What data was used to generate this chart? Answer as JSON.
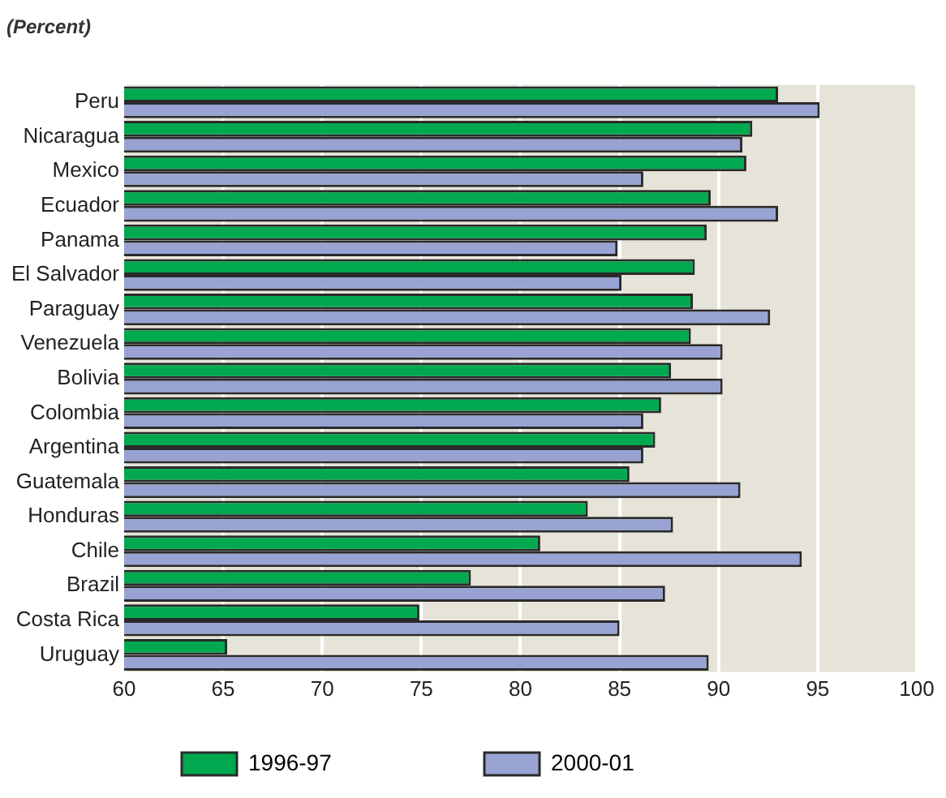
{
  "chart_data": {
    "type": "bar",
    "orientation": "horizontal",
    "title": "(Percent)",
    "categories": [
      "Peru",
      "Nicaragua",
      "Mexico",
      "Ecuador",
      "Panama",
      "El Salvador",
      "Paraguay",
      "Venezuela",
      "Bolivia",
      "Colombia",
      "Argentina",
      "Guatemala",
      "Honduras",
      "Chile",
      "Brazil",
      "Costa Rica",
      "Uruguay"
    ],
    "series": [
      {
        "name": "1996-97",
        "color": "#00a94f",
        "values": [
          93.0,
          91.7,
          91.4,
          89.6,
          89.4,
          88.8,
          88.7,
          88.6,
          87.6,
          87.1,
          86.8,
          85.5,
          83.4,
          81.0,
          77.5,
          74.9,
          65.2
        ]
      },
      {
        "name": "2000-01",
        "color": "#98a3d3",
        "values": [
          95.1,
          91.2,
          86.2,
          93.0,
          84.9,
          85.1,
          92.6,
          90.2,
          90.2,
          86.2,
          86.2,
          91.1,
          87.7,
          94.2,
          87.3,
          85.0,
          89.5
        ]
      }
    ],
    "xlim": [
      60,
      100
    ],
    "xticks": [
      60,
      65,
      70,
      75,
      80,
      85,
      90,
      95,
      100
    ],
    "grid": "x",
    "legend": "bottom"
  }
}
